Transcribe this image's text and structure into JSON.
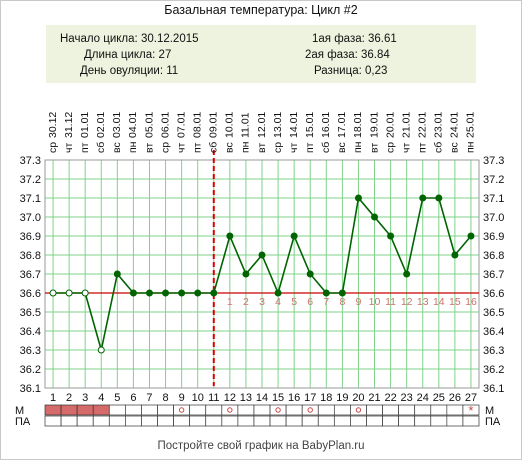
{
  "chart_title": "Базальная температура: Цикл #2",
  "info": {
    "left": [
      {
        "label": "Начало цикла:",
        "value": "30.12.2015"
      },
      {
        "label": "Длина цикла:",
        "value": "27"
      },
      {
        "label": "День овуляции:",
        "value": "11"
      }
    ],
    "right": [
      {
        "label": "1ая фаза:",
        "value": "36.61"
      },
      {
        "label": "2ая фаза:",
        "value": "36.84"
      },
      {
        "label": "Разница:",
        "value": "0,23"
      }
    ]
  },
  "row_labels": {
    "m": "М",
    "pa": "ПА"
  },
  "footer": "Постройте свой график на BabyPlan.ru",
  "colors": {
    "line": "#006400",
    "grid": "#7fd28a",
    "coverline": "#cc0000",
    "ovulation": "#dd0000",
    "post_ovulation_numbers": "#d07070",
    "menstruation": "#d46a6a",
    "panel": "#eef3df"
  },
  "chart_data": {
    "type": "line",
    "title": "Базальная температура: Цикл #2",
    "x": [
      1,
      2,
      3,
      4,
      5,
      6,
      7,
      8,
      9,
      10,
      11,
      12,
      13,
      14,
      15,
      16,
      17,
      18,
      19,
      20,
      21,
      22,
      23,
      24,
      25,
      26,
      27
    ],
    "weekdays": [
      "ср",
      "чт",
      "пт",
      "сб",
      "вс",
      "пн",
      "вт",
      "ср",
      "чт",
      "пт",
      "сб",
      "вс",
      "пн",
      "вт",
      "ср",
      "чт",
      "пт",
      "сб",
      "вс",
      "пн",
      "вт",
      "ср",
      "чт",
      "пт",
      "сб",
      "вс",
      "пн"
    ],
    "dates": [
      "30.12",
      "31.12",
      "01.01",
      "02.01",
      "03.01",
      "04.01",
      "05.01",
      "06.01",
      "07.01",
      "08.01",
      "09.01",
      "10.01",
      "11.01",
      "12.01",
      "13.01",
      "14.01",
      "15.01",
      "16.01",
      "17.01",
      "18.01",
      "19.01",
      "20.01",
      "21.01",
      "22.01",
      "23.01",
      "24.01",
      "25.01"
    ],
    "series": [
      {
        "values": [
          36.6,
          36.6,
          36.6,
          36.3,
          36.7,
          36.6,
          36.6,
          36.6,
          36.6,
          36.6,
          36.6,
          36.9,
          36.7,
          36.8,
          36.6,
          36.9,
          36.7,
          36.6,
          36.6,
          37.1,
          37.0,
          36.9,
          36.7,
          37.1,
          37.1,
          36.8,
          36.9
        ],
        "hollow_markers": [
          1,
          2,
          3,
          4
        ]
      }
    ],
    "y_ticks": [
      "37.3",
      "37.2",
      "37.1",
      "37.0",
      "36.9",
      "36.8",
      "36.7",
      "36.6",
      "36.5",
      "36.4",
      "36.3",
      "36.2",
      "36.1"
    ],
    "ylim": [
      36.1,
      37.3
    ],
    "coverline": 36.6,
    "ovulation_day": 11,
    "post_ovulation_labels": [
      "1",
      "2",
      "3",
      "4",
      "5",
      "6",
      "7",
      "8",
      "9",
      "10",
      "11",
      "12",
      "13",
      "14",
      "15",
      "16"
    ],
    "menstruation_days": [
      1,
      2,
      3,
      4
    ],
    "m_symbols": {
      "27": "*"
    },
    "pa_marks": [
      9,
      12,
      15,
      17,
      20
    ],
    "grid": true
  }
}
